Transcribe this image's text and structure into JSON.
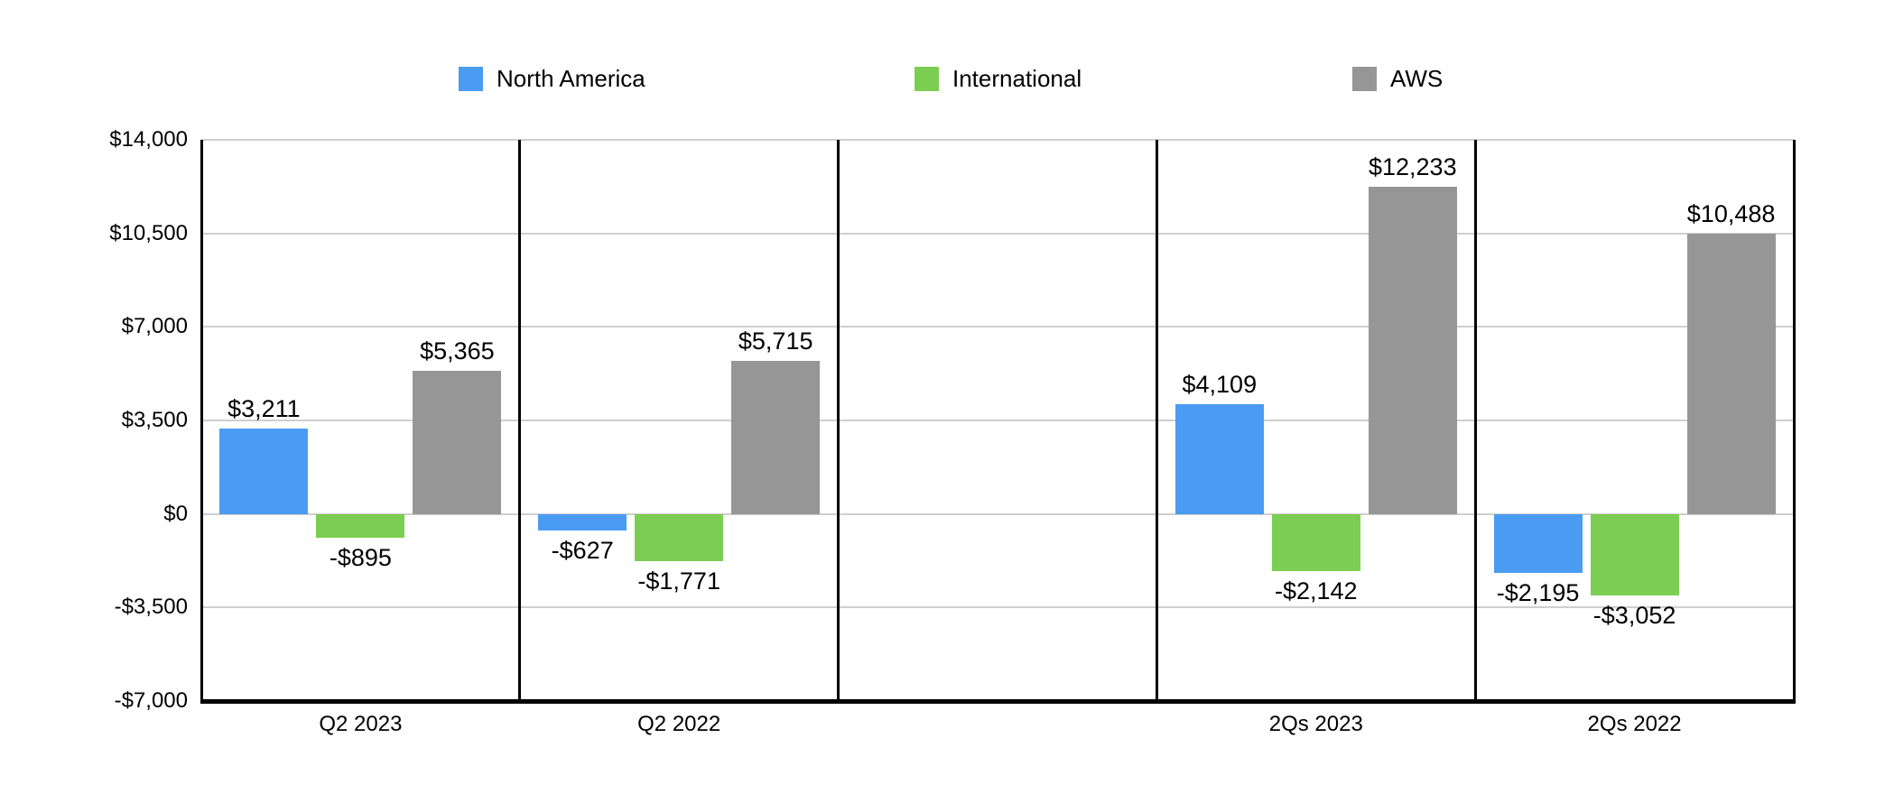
{
  "chart": {
    "background": "#ffffff",
    "legend": {
      "position": "top",
      "items": [
        {
          "label": "North America",
          "color": "#4A9CF2",
          "swatch_icon": "square-swatch"
        },
        {
          "label": "International",
          "color": "#7CCE52",
          "swatch_icon": "square-swatch"
        },
        {
          "label": "AWS",
          "color": "#969696",
          "swatch_icon": "square-swatch"
        }
      ]
    },
    "chart_data": {
      "type": "bar",
      "title": "",
      "xlabel": "",
      "ylabel": "",
      "grid": true,
      "gridline_color": "#CFCFCF",
      "axis_color": "#000000",
      "legend_position": "top",
      "categories": [
        "Q2 2023",
        "Q2 2022",
        "",
        "2Qs 2023",
        "2Qs 2022"
      ],
      "series": [
        {
          "name": "North America",
          "color": "#4A9CF2",
          "values": [
            3211,
            -627,
            null,
            4109,
            -2195
          ],
          "labels": [
            "$3,211",
            "-$627",
            "",
            "$4,109",
            "-$2,195"
          ]
        },
        {
          "name": "International",
          "color": "#7CCE52",
          "values": [
            -895,
            -1771,
            null,
            -2142,
            -3052
          ],
          "labels": [
            "-$895",
            "-$1,771",
            "",
            "-$2,142",
            "-$3,052"
          ]
        },
        {
          "name": "AWS",
          "color": "#969696",
          "values": [
            5365,
            5715,
            null,
            12233,
            10488
          ],
          "labels": [
            "$5,365",
            "$5,715",
            "",
            "$12,233",
            "$10,488"
          ]
        }
      ],
      "y_axis": {
        "ylim": [
          -7000,
          14000
        ],
        "ticks": [
          {
            "value": 14000,
            "label": "$14,000"
          },
          {
            "value": 10500,
            "label": "$10,500"
          },
          {
            "value": 7000,
            "label": "$7,000"
          },
          {
            "value": 3500,
            "label": "$3,500"
          },
          {
            "value": 0,
            "label": "$0"
          },
          {
            "value": -3500,
            "label": "-$3,500"
          },
          {
            "value": -7000,
            "label": "-$7,000"
          }
        ]
      }
    }
  }
}
